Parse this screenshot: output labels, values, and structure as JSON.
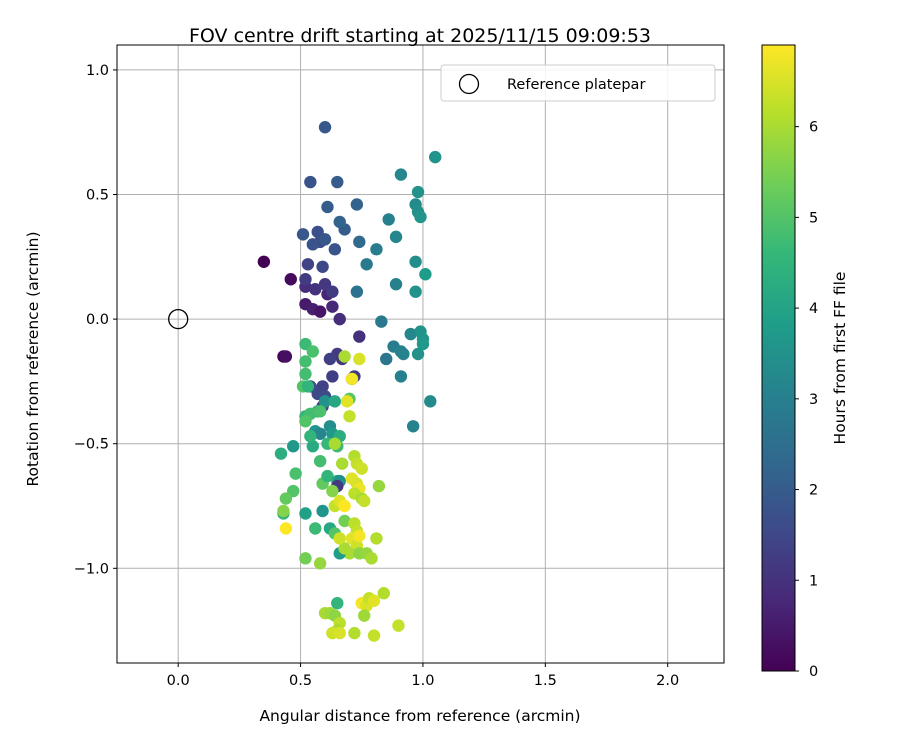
{
  "chart_data": {
    "type": "scatter",
    "title": "FOV centre drift starting at 2025/11/15 09:09:53",
    "xlabel": "Angular distance from reference (arcmin)",
    "ylabel": "Rotation from reference (arcmin)",
    "xlim": [
      -0.25,
      2.23
    ],
    "ylim": [
      -1.38,
      1.1
    ],
    "xticks": [
      0.0,
      0.5,
      1.0,
      1.5,
      2.0
    ],
    "xtick_labels": [
      "0.0",
      "0.5",
      "1.0",
      "1.5",
      "2.0"
    ],
    "yticks": [
      -1.0,
      -0.5,
      0.0,
      0.5,
      1.0
    ],
    "ytick_labels": [
      "−1.0",
      "−0.5",
      "0.0",
      "0.5",
      "1.0"
    ],
    "grid": true,
    "legend": {
      "label": "Reference platepar",
      "location": "top-right"
    },
    "reference_point": {
      "x": 0.0,
      "y": 0.0
    },
    "colorbar": {
      "label": "Hours from first FF file",
      "min": 0,
      "max": 6.9,
      "ticks": [
        0,
        1,
        2,
        3,
        4,
        5,
        6
      ],
      "tick_labels": [
        "0",
        "1",
        "2",
        "3",
        "4",
        "5",
        "6"
      ],
      "colormap": [
        "#440154",
        "#482878",
        "#3e4989",
        "#31688e",
        "#26828e",
        "#1f9e89",
        "#35b779",
        "#6ece58",
        "#b5de2b",
        "#fde725"
      ]
    },
    "points": [
      [
        0.35,
        0.23,
        0.0
      ],
      [
        0.46,
        0.16,
        0.2
      ],
      [
        0.43,
        -0.15,
        0.1
      ],
      [
        0.44,
        -0.15,
        0.3
      ],
      [
        0.52,
        0.06,
        0.5
      ],
      [
        0.55,
        0.04,
        0.6
      ],
      [
        0.58,
        0.03,
        0.4
      ],
      [
        0.61,
        0.1,
        0.7
      ],
      [
        0.63,
        0.05,
        0.8
      ],
      [
        0.66,
        0.0,
        0.9
      ],
      [
        0.52,
        0.13,
        0.9
      ],
      [
        0.56,
        0.12,
        1.0
      ],
      [
        0.6,
        0.14,
        1.1
      ],
      [
        0.52,
        0.16,
        1.2
      ],
      [
        0.53,
        0.22,
        1.4
      ],
      [
        0.59,
        0.21,
        1.5
      ],
      [
        0.58,
        0.31,
        1.6
      ],
      [
        0.55,
        0.3,
        1.8
      ],
      [
        0.51,
        0.34,
        1.9
      ],
      [
        0.57,
        0.35,
        1.7
      ],
      [
        0.64,
        0.28,
        1.8
      ],
      [
        0.6,
        0.32,
        1.9
      ],
      [
        0.68,
        0.36,
        2.0
      ],
      [
        0.66,
        0.39,
        2.2
      ],
      [
        0.63,
        0.11,
        1.2
      ],
      [
        0.73,
        0.11,
        2.6
      ],
      [
        0.6,
        0.77,
        1.9
      ],
      [
        0.54,
        0.55,
        1.8
      ],
      [
        0.65,
        0.55,
        2.0
      ],
      [
        0.61,
        0.45,
        2.0
      ],
      [
        0.73,
        0.46,
        2.2
      ],
      [
        0.74,
        0.31,
        2.4
      ],
      [
        0.77,
        0.22,
        2.8
      ],
      [
        0.81,
        0.28,
        2.9
      ],
      [
        0.86,
        0.4,
        3.0
      ],
      [
        0.89,
        0.33,
        3.2
      ],
      [
        0.91,
        0.58,
        3.2
      ],
      [
        0.89,
        0.14,
        3.0
      ],
      [
        0.98,
        0.51,
        3.5
      ],
      [
        0.97,
        0.46,
        3.3
      ],
      [
        0.98,
        0.43,
        3.4
      ],
      [
        0.99,
        0.41,
        3.6
      ],
      [
        0.97,
        0.23,
        3.4
      ],
      [
        0.97,
        0.11,
        3.5
      ],
      [
        1.05,
        0.65,
        3.6
      ],
      [
        1.01,
        0.18,
        3.8
      ],
      [
        0.83,
        -0.01,
        2.8
      ],
      [
        0.88,
        -0.11,
        2.9
      ],
      [
        0.91,
        -0.13,
        3.0
      ],
      [
        0.92,
        -0.14,
        3.1
      ],
      [
        0.85,
        -0.16,
        2.7
      ],
      [
        0.95,
        -0.06,
        3.2
      ],
      [
        0.99,
        -0.05,
        3.5
      ],
      [
        1.0,
        -0.08,
        3.6
      ],
      [
        1.0,
        -0.1,
        3.7
      ],
      [
        0.98,
        -0.14,
        3.5
      ],
      [
        0.91,
        -0.23,
        3.0
      ],
      [
        1.03,
        -0.33,
        3.3
      ],
      [
        0.96,
        -0.43,
        3.1
      ],
      [
        0.74,
        -0.07,
        1.0
      ],
      [
        0.65,
        -0.14,
        1.2
      ],
      [
        0.67,
        -0.16,
        1.1
      ],
      [
        0.62,
        -0.16,
        1.3
      ],
      [
        0.63,
        -0.23,
        1.3
      ],
      [
        0.59,
        -0.27,
        1.4
      ],
      [
        0.57,
        -0.3,
        1.5
      ],
      [
        0.6,
        -0.31,
        1.6
      ],
      [
        0.59,
        -0.35,
        1.4
      ],
      [
        0.54,
        -0.27,
        1.6
      ],
      [
        0.72,
        -0.23,
        1.2
      ],
      [
        0.71,
        -0.24,
        1.0
      ],
      [
        0.52,
        -0.1,
        4.7
      ],
      [
        0.52,
        -0.17,
        4.8
      ],
      [
        0.55,
        -0.13,
        4.9
      ],
      [
        0.52,
        -0.22,
        4.8
      ],
      [
        0.51,
        -0.27,
        5.0
      ],
      [
        0.53,
        -0.27,
        4.5
      ],
      [
        0.6,
        -0.33,
        3.5
      ],
      [
        0.64,
        -0.33,
        4.1
      ],
      [
        0.7,
        -0.32,
        5.1
      ],
      [
        0.57,
        -0.37,
        4.4
      ],
      [
        0.52,
        -0.39,
        4.6
      ],
      [
        0.54,
        -0.38,
        4.8
      ],
      [
        0.58,
        -0.37,
        4.9
      ],
      [
        0.52,
        -0.41,
        5.0
      ],
      [
        0.56,
        -0.45,
        3.6
      ],
      [
        0.58,
        -0.46,
        3.2
      ],
      [
        0.62,
        -0.43,
        3.4
      ],
      [
        0.63,
        -0.46,
        3.7
      ],
      [
        0.66,
        -0.47,
        4.3
      ],
      [
        0.65,
        -0.51,
        4.7
      ],
      [
        0.61,
        -0.5,
        4.6
      ],
      [
        0.55,
        -0.51,
        4.2
      ],
      [
        0.54,
        -0.47,
        4.5
      ],
      [
        0.47,
        -0.51,
        3.7
      ],
      [
        0.42,
        -0.54,
        4.3
      ],
      [
        0.69,
        -0.33,
        6.6
      ],
      [
        0.7,
        -0.39,
        6.3
      ],
      [
        0.64,
        -0.5,
        6.0
      ],
      [
        0.74,
        -0.16,
        6.5
      ],
      [
        0.68,
        -0.15,
        6.0
      ],
      [
        0.71,
        -0.24,
        6.8
      ],
      [
        0.72,
        -0.55,
        6.1
      ],
      [
        0.73,
        -0.58,
        6.3
      ],
      [
        0.75,
        -0.6,
        6.4
      ],
      [
        0.67,
        -0.58,
        6.0
      ],
      [
        0.58,
        -0.57,
        4.8
      ],
      [
        0.59,
        -0.66,
        5.2
      ],
      [
        0.61,
        -0.63,
        4.5
      ],
      [
        0.65,
        -0.65,
        4.2
      ],
      [
        0.66,
        -0.65,
        3.5
      ],
      [
        0.65,
        -0.67,
        1.2
      ],
      [
        0.63,
        -0.69,
        5.6
      ],
      [
        0.71,
        -0.64,
        6.6
      ],
      [
        0.73,
        -0.66,
        6.5
      ],
      [
        0.74,
        -0.68,
        6.7
      ],
      [
        0.72,
        -0.7,
        6.2
      ],
      [
        0.75,
        -0.72,
        6.0
      ],
      [
        0.76,
        -0.73,
        6.3
      ],
      [
        0.82,
        -0.67,
        5.8
      ],
      [
        0.48,
        -0.62,
        4.9
      ],
      [
        0.47,
        -0.69,
        5.0
      ],
      [
        0.44,
        -0.72,
        5.2
      ],
      [
        0.43,
        -0.78,
        4.5
      ],
      [
        0.43,
        -0.77,
        5.6
      ],
      [
        0.44,
        -0.84,
        6.9
      ],
      [
        0.52,
        -0.78,
        3.9
      ],
      [
        0.59,
        -0.77,
        3.6
      ],
      [
        0.56,
        -0.84,
        4.7
      ],
      [
        0.62,
        -0.84,
        4.1
      ],
      [
        0.64,
        -0.86,
        5.0
      ],
      [
        0.68,
        -0.81,
        5.4
      ],
      [
        0.72,
        -0.82,
        6.2
      ],
      [
        0.73,
        -0.85,
        6.3
      ],
      [
        0.71,
        -0.88,
        6.6
      ],
      [
        0.73,
        -0.91,
        6.4
      ],
      [
        0.74,
        -0.87,
        6.8
      ],
      [
        0.7,
        -0.94,
        6.0
      ],
      [
        0.66,
        -0.94,
        3.8
      ],
      [
        0.68,
        -0.92,
        6.0
      ],
      [
        0.66,
        -0.88,
        6.4
      ],
      [
        0.64,
        -0.75,
        6.3
      ],
      [
        0.66,
        -0.73,
        6.6
      ],
      [
        0.68,
        -0.75,
        6.9
      ],
      [
        0.74,
        -0.94,
        5.7
      ],
      [
        0.77,
        -0.94,
        5.8
      ],
      [
        0.79,
        -0.96,
        6.0
      ],
      [
        0.81,
        -0.88,
        6.1
      ],
      [
        0.52,
        -0.96,
        5.4
      ],
      [
        0.58,
        -0.98,
        5.8
      ],
      [
        0.65,
        -1.14,
        4.5
      ],
      [
        0.6,
        -1.18,
        6.0
      ],
      [
        0.62,
        -1.18,
        5.9
      ],
      [
        0.64,
        -1.19,
        5.7
      ],
      [
        0.75,
        -1.14,
        6.8
      ],
      [
        0.77,
        -1.15,
        6.5
      ],
      [
        0.78,
        -1.12,
        6.3
      ],
      [
        0.8,
        -1.13,
        6.6
      ],
      [
        0.84,
        -1.1,
        6.1
      ],
      [
        0.76,
        -1.19,
        5.9
      ],
      [
        0.66,
        -1.22,
        6.2
      ],
      [
        0.65,
        -1.25,
        6.0
      ],
      [
        0.63,
        -1.26,
        6.4
      ],
      [
        0.66,
        -1.26,
        6.5
      ],
      [
        0.72,
        -1.26,
        6.1
      ],
      [
        0.8,
        -1.27,
        6.3
      ],
      [
        0.9,
        -1.23,
        6.3
      ]
    ]
  }
}
